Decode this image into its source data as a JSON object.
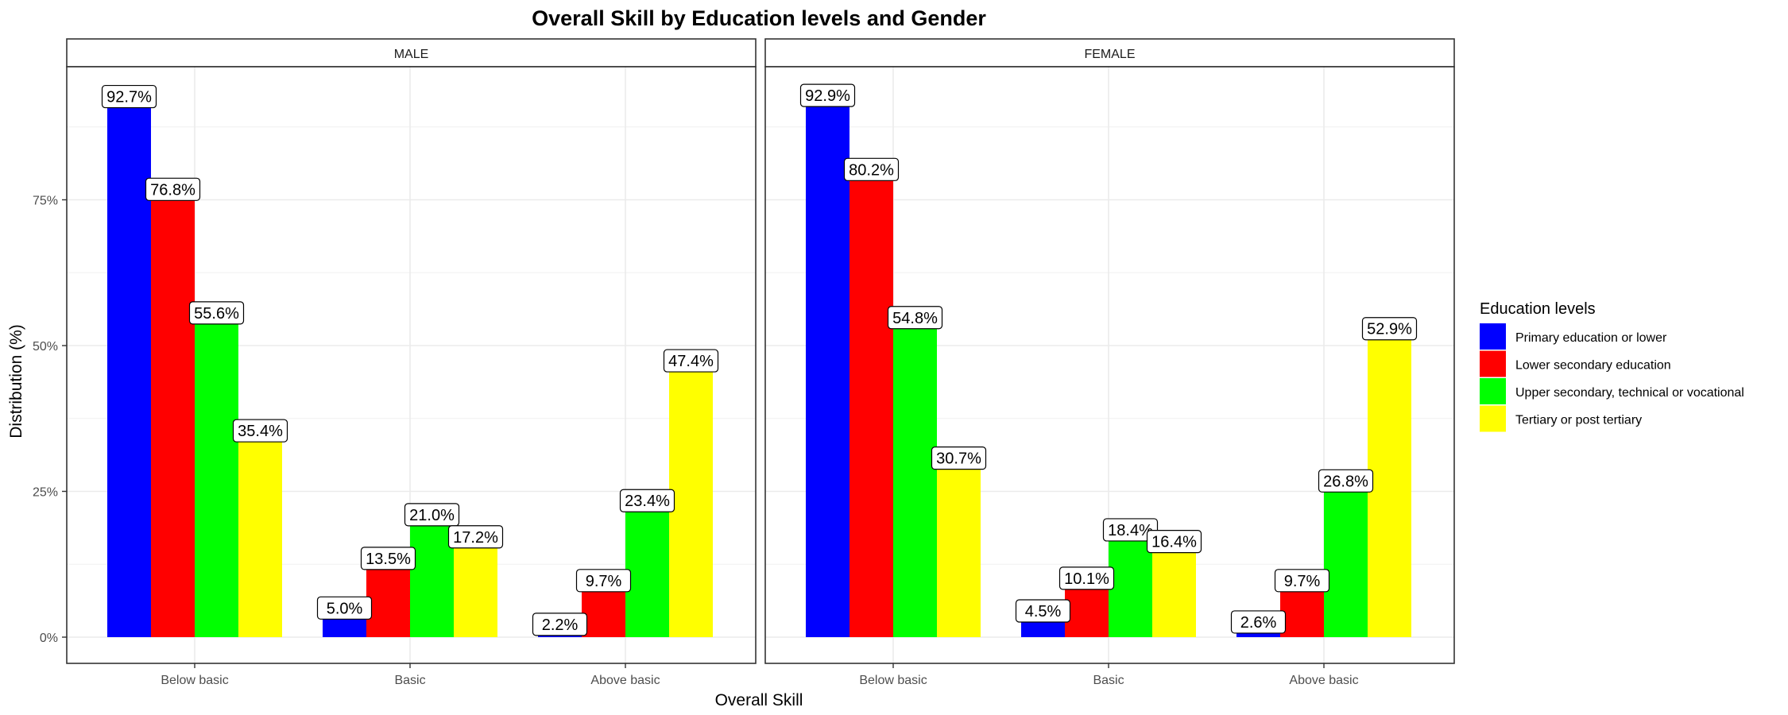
{
  "chart_data": {
    "type": "bar",
    "title": "Overall Skill by Education levels and Gender",
    "xlabel": "Overall Skill",
    "ylabel": "Distribution (%)",
    "ylim": [
      0,
      100
    ],
    "yticks": [
      0,
      25,
      50,
      75
    ],
    "ytick_labels": [
      "0%",
      "25%",
      "50%",
      "75%"
    ],
    "grid": true,
    "categories": [
      "Below basic",
      "Basic",
      "Above basic"
    ],
    "legend": {
      "title": "Education levels",
      "position": "right",
      "entries": [
        {
          "name": "Primary education or lower",
          "color": "#0000ff"
        },
        {
          "name": "Lower secondary education",
          "color": "#ff0000"
        },
        {
          "name": "Upper secondary, technical or vocational",
          "color": "#00ff00"
        },
        {
          "name": "Tertiary or post tertiary",
          "color": "#ffff00"
        }
      ]
    },
    "panels": [
      {
        "label": "MALE",
        "series": [
          {
            "name": "Primary education or lower",
            "values": [
              92.7,
              5.0,
              2.2
            ],
            "labels": [
              "92.7%",
              "5.0%",
              "2.2%"
            ]
          },
          {
            "name": "Lower secondary education",
            "values": [
              76.8,
              13.5,
              9.7
            ],
            "labels": [
              "76.8%",
              "13.5%",
              "9.7%"
            ]
          },
          {
            "name": "Upper secondary, technical or vocational",
            "values": [
              55.6,
              21.0,
              23.4
            ],
            "labels": [
              "55.6%",
              "21.0%",
              "23.4%"
            ]
          },
          {
            "name": "Tertiary or post tertiary",
            "values": [
              35.4,
              17.2,
              47.4
            ],
            "labels": [
              "35.4%",
              "17.2%",
              "47.4%"
            ]
          }
        ]
      },
      {
        "label": "FEMALE",
        "series": [
          {
            "name": "Primary education or lower",
            "values": [
              92.9,
              4.5,
              2.6
            ],
            "labels": [
              "92.9%",
              "4.5%",
              "2.6%"
            ]
          },
          {
            "name": "Lower secondary education",
            "values": [
              80.2,
              10.1,
              9.7
            ],
            "labels": [
              "80.2%",
              "10.1%",
              "9.7%"
            ]
          },
          {
            "name": "Upper secondary, technical or vocational",
            "values": [
              54.8,
              18.4,
              26.8
            ],
            "labels": [
              "54.8%",
              "18.4%",
              "26.8%"
            ]
          },
          {
            "name": "Tertiary or post tertiary",
            "values": [
              30.7,
              16.4,
              52.9
            ],
            "labels": [
              "30.7%",
              "16.4%",
              "52.9%"
            ]
          }
        ]
      }
    ]
  }
}
